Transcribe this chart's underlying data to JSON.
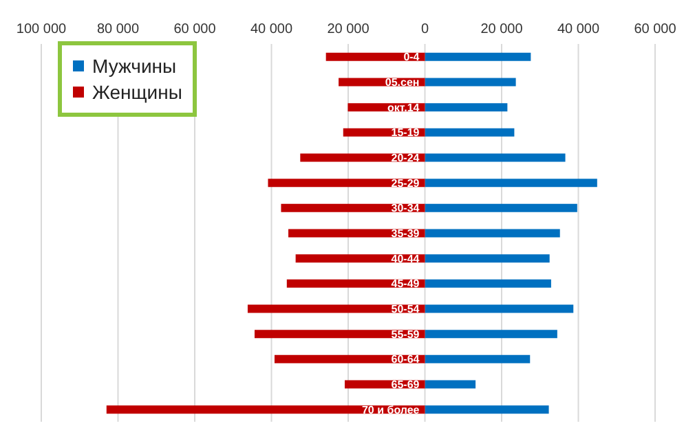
{
  "chart_data": {
    "type": "bar",
    "orientation": "horizontal",
    "stacked": true,
    "categories": [
      "0-4",
      "05.сен",
      "окт.14",
      "15-19",
      "20-24",
      "25-29",
      "30-34",
      "35-39",
      "40-44",
      "45-49",
      "50-54",
      "55-59",
      "60-64",
      "65-69",
      "70 и более"
    ],
    "series": [
      {
        "name": "Мужчины",
        "color": "#0070c0",
        "values": [
          27600,
          23700,
          21500,
          23300,
          36600,
          44900,
          39700,
          35200,
          32500,
          32900,
          38700,
          34500,
          27400,
          13200,
          32300
        ]
      },
      {
        "name": "Женщины",
        "color": "#c00000",
        "values": [
          -25800,
          -22500,
          -20100,
          -21300,
          -32500,
          -40900,
          -37500,
          -35600,
          -33700,
          -36000,
          -46200,
          -44400,
          -39200,
          -20900,
          -83000
        ]
      }
    ],
    "xlim": [
      -100000,
      60000
    ],
    "xticks": [
      {
        "value": -100000,
        "label": "100 000"
      },
      {
        "value": -80000,
        "label": "80 000"
      },
      {
        "value": -60000,
        "label": "60 000"
      },
      {
        "value": -40000,
        "label": "40 000"
      },
      {
        "value": -20000,
        "label": "20 000"
      },
      0,
      {
        "value": 20000,
        "label": "20 000"
      },
      {
        "value": 40000,
        "label": "40 000"
      },
      {
        "value": 60000,
        "label": "60 000"
      }
    ],
    "grid": "x",
    "legend": "top left"
  }
}
